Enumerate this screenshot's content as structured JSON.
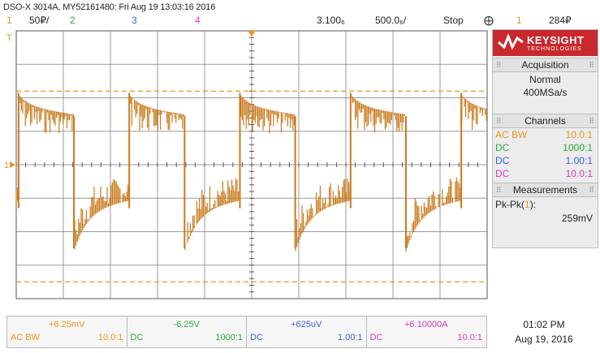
{
  "title": "DSO-X 3014A, MY52161480: Fri Aug 19 13:03:16 2016",
  "topbar": {
    "ch1_num": "1",
    "ch1_scale": "50₽/",
    "ch2_num": "2",
    "ch3_num": "3",
    "ch4_num": "4",
    "delay": "3.100₆",
    "timebase": "500.0₆/",
    "run_state": "Stop",
    "trigger_icon": "⨁",
    "trigger_source": "1",
    "trigger_level": "284₽"
  },
  "markers": {
    "trigger_pos": "T",
    "ch1_ground": "1"
  },
  "panel": {
    "brand": "KEYSIGHT",
    "brand_sub": "TECHNOLOGIES",
    "acquisition_header": "Acquisition",
    "acq_mode": "Normal",
    "acq_rate": "400MSa/s",
    "channels_header": "Channels",
    "channels": [
      {
        "coupling": "AC BW",
        "probe": "10.0:1",
        "color": "#e8961e"
      },
      {
        "coupling": "DC",
        "probe": "1000:1",
        "color": "#2aa83a"
      },
      {
        "coupling": "DC",
        "probe": "1.00:1",
        "color": "#3a5fd9"
      },
      {
        "coupling": "DC",
        "probe": "10.0:1",
        "color": "#d63cb0"
      }
    ],
    "measurements_header": "Measurements",
    "meas_label": "Pk-Pk(",
    "meas_channel": "1",
    "meas_label_end": "):",
    "meas_value": "259mV"
  },
  "bottom": [
    {
      "offset": "+6.25mV",
      "coupling": "AC  BW",
      "probe": "10.0:1",
      "color": "#e8961e"
    },
    {
      "offset": "-6.25V",
      "coupling": "DC",
      "probe": "1000:1",
      "color": "#2aa83a"
    },
    {
      "offset": "+625uV",
      "coupling": "DC",
      "probe": "1.00:1",
      "color": "#3a5fd9"
    },
    {
      "offset": "+6.10000A",
      "coupling": "DC",
      "probe": "10.0:1",
      "color": "#d63cb0"
    }
  ],
  "datetime": {
    "time": "01:02 PM",
    "date": "Aug 19, 2016"
  },
  "waveform": {
    "period_div": 2.35,
    "high_div": 1.75,
    "low_div": -1.3,
    "cursor_upper_div": 2.2,
    "cursor_lower_div": -3.5,
    "trace_color": "#c97a1c"
  }
}
